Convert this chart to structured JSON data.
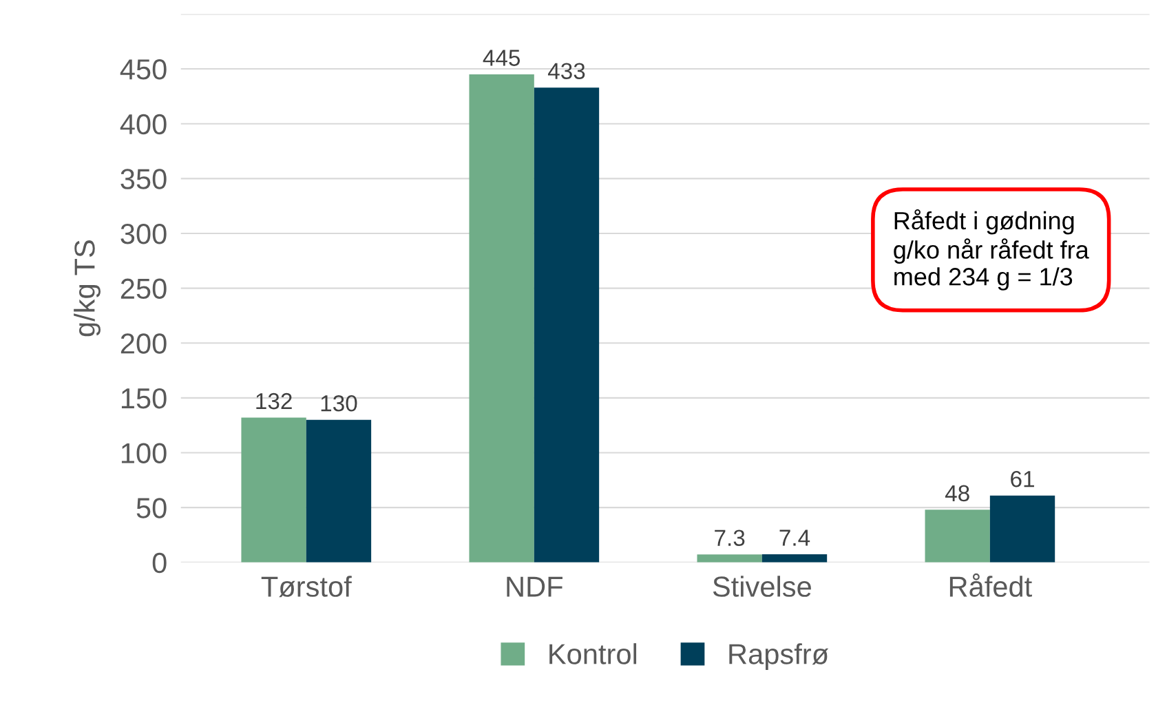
{
  "chart_data": {
    "type": "bar",
    "ylabel": "g/kg TS",
    "categories": [
      "Tørstof",
      "NDF",
      "Stivelse",
      "Råfedt"
    ],
    "series": [
      {
        "name": "Kontrol",
        "color": "#70ad88",
        "values": [
          132,
          445,
          7.3,
          48
        ]
      },
      {
        "name": "Rapsfrø",
        "color": "#003f5a",
        "values": [
          130,
          433,
          7.4,
          61
        ]
      }
    ],
    "ylim": [
      0,
      500
    ],
    "yticks": [
      0,
      50,
      100,
      150,
      200,
      250,
      300,
      350,
      400,
      450,
      {
        "value": 500,
        "label": null
      }
    ],
    "grid": "y",
    "legend": "bottom",
    "data_labels": true,
    "annotations": [
      "Råfedt i gødning\ng/ko når råfedt fra\nmed 234 g = 1/3"
    ]
  }
}
